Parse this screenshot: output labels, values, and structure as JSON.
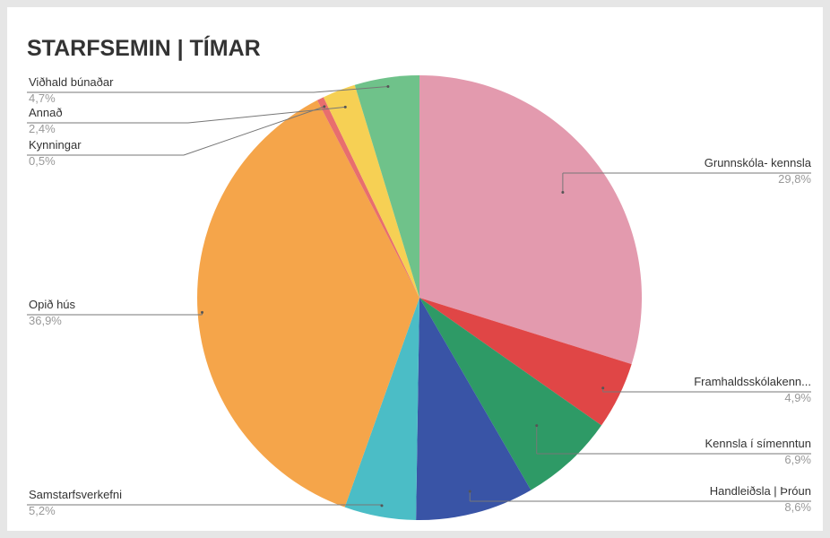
{
  "chart_data": {
    "type": "pie",
    "title": "STARFSEMIN | TÍMAR",
    "categories": [
      "Grunnskóla- kennsla",
      "Framhaldsskólakenn...",
      "Kennsla í símenntun",
      "Handleiðsla | Þróun",
      "Samstarfsverkefni",
      "Opið hús",
      "Kynningar",
      "Annað",
      "Viðhald búnaðar"
    ],
    "values": [
      29.8,
      4.9,
      6.9,
      8.6,
      5.2,
      36.9,
      0.5,
      2.4,
      4.7
    ],
    "value_labels": [
      "29,8%",
      "4,9%",
      "6,9%",
      "8,6%",
      "5,2%",
      "36,9%",
      "0,5%",
      "2,4%",
      "4,7%"
    ],
    "colors": [
      "#e39aae",
      "#e04646",
      "#2e9a66",
      "#3954a6",
      "#4bbdc6",
      "#f5a54a",
      "#e86e6e",
      "#f6d054",
      "#6fc28a"
    ]
  }
}
